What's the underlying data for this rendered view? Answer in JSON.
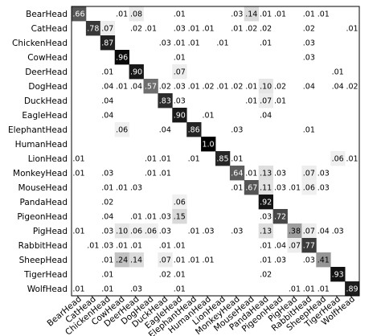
{
  "chart_data": {
    "type": "heatmap",
    "title": "",
    "xlabel": "",
    "ylabel": "",
    "labels": [
      "BearHead",
      "CatHead",
      "ChickenHead",
      "CowHead",
      "DeerHead",
      "DogHead",
      "DuckHead",
      "EagleHead",
      "ElephantHead",
      "HumanHead",
      "LionHead",
      "MonkeyHead",
      "MouseHead",
      "PandaHead",
      "PigeonHead",
      "PigHead",
      "RabbitHead",
      "SheepHead",
      "TigerHead",
      "WolfHead"
    ],
    "grid": false,
    "colormap": "gray-reversed",
    "range": [
      0,
      1
    ],
    "cells": [
      [
        [
          0,
          ".66"
        ],
        [
          3,
          ".01"
        ],
        [
          4,
          ".08"
        ],
        [
          7,
          ".01"
        ],
        [
          11,
          ".03"
        ],
        [
          12,
          ".14"
        ],
        [
          13,
          ".01"
        ],
        [
          14,
          ".01"
        ],
        [
          16,
          ".01"
        ],
        [
          17,
          ".01"
        ]
      ],
      [
        [
          1,
          ".78"
        ],
        [
          2,
          ".07"
        ],
        [
          4,
          ".02"
        ],
        [
          5,
          ".01"
        ],
        [
          7,
          ".03"
        ],
        [
          8,
          ".01"
        ],
        [
          9,
          ".01"
        ],
        [
          11,
          ".01"
        ],
        [
          12,
          ".02"
        ],
        [
          13,
          ".02"
        ],
        [
          16,
          ".02"
        ],
        [
          19,
          ".01"
        ]
      ],
      [
        [
          2,
          ".87"
        ],
        [
          6,
          ".03"
        ],
        [
          7,
          ".01"
        ],
        [
          8,
          ".01"
        ],
        [
          10,
          ".01"
        ],
        [
          13,
          ".01"
        ],
        [
          16,
          ".03"
        ]
      ],
      [
        [
          3,
          ".96"
        ],
        [
          7,
          ".01"
        ],
        [
          16,
          ".03"
        ]
      ],
      [
        [
          2,
          ".01"
        ],
        [
          4,
          ".90"
        ],
        [
          7,
          ".07"
        ],
        [
          18,
          ".01"
        ]
      ],
      [
        [
          2,
          ".04"
        ],
        [
          3,
          ".01"
        ],
        [
          4,
          ".04"
        ],
        [
          5,
          ".57"
        ],
        [
          6,
          ".02"
        ],
        [
          7,
          ".03"
        ],
        [
          8,
          ".01"
        ],
        [
          9,
          ".02"
        ],
        [
          10,
          ".01"
        ],
        [
          11,
          ".02"
        ],
        [
          12,
          ".01"
        ],
        [
          13,
          ".10"
        ],
        [
          14,
          ".02"
        ],
        [
          16,
          ".04"
        ],
        [
          18,
          ".04"
        ],
        [
          19,
          ".02"
        ]
      ],
      [
        [
          2,
          ".04"
        ],
        [
          6,
          ".83"
        ],
        [
          7,
          ".03"
        ],
        [
          12,
          ".01"
        ],
        [
          13,
          ".07"
        ],
        [
          14,
          ".01"
        ]
      ],
      [
        [
          2,
          ".04"
        ],
        [
          7,
          ".90"
        ],
        [
          9,
          ".01"
        ],
        [
          13,
          ".04"
        ]
      ],
      [
        [
          3,
          ".06"
        ],
        [
          6,
          ".04"
        ],
        [
          8,
          ".86"
        ],
        [
          11,
          ".03"
        ],
        [
          16,
          ".01"
        ]
      ],
      [
        [
          9,
          "1.0"
        ]
      ],
      [
        [
          0,
          ".01"
        ],
        [
          5,
          ".01"
        ],
        [
          6,
          ".01"
        ],
        [
          8,
          ".01"
        ],
        [
          10,
          ".85"
        ],
        [
          11,
          ".01"
        ],
        [
          18,
          ".06"
        ],
        [
          19,
          ".01"
        ]
      ],
      [
        [
          0,
          ".01"
        ],
        [
          2,
          ".03"
        ],
        [
          5,
          ".01"
        ],
        [
          6,
          ".01"
        ],
        [
          11,
          ".64"
        ],
        [
          12,
          ".01"
        ],
        [
          13,
          ".13"
        ],
        [
          14,
          ".03"
        ],
        [
          16,
          ".07"
        ],
        [
          17,
          ".03"
        ]
      ],
      [
        [
          2,
          ".01"
        ],
        [
          3,
          ".01"
        ],
        [
          4,
          ".03"
        ],
        [
          11,
          ".01"
        ],
        [
          12,
          ".67"
        ],
        [
          13,
          ".11"
        ],
        [
          14,
          ".03"
        ],
        [
          15,
          ".01"
        ],
        [
          16,
          ".06"
        ],
        [
          17,
          ".03"
        ]
      ],
      [
        [
          2,
          ".02"
        ],
        [
          7,
          ".06"
        ],
        [
          13,
          ".92"
        ]
      ],
      [
        [
          2,
          ".04"
        ],
        [
          4,
          ".01"
        ],
        [
          5,
          ".01"
        ],
        [
          6,
          ".03"
        ],
        [
          7,
          ".15"
        ],
        [
          13,
          ".03"
        ],
        [
          14,
          ".72"
        ]
      ],
      [
        [
          0,
          ".01"
        ],
        [
          2,
          ".03"
        ],
        [
          3,
          ".10"
        ],
        [
          4,
          ".06"
        ],
        [
          5,
          ".06"
        ],
        [
          6,
          ".03"
        ],
        [
          8,
          ".01"
        ],
        [
          9,
          ".03"
        ],
        [
          11,
          ".03"
        ],
        [
          13,
          ".13"
        ],
        [
          15,
          ".38"
        ],
        [
          16,
          ".07"
        ],
        [
          17,
          ".04"
        ],
        [
          18,
          ".03"
        ]
      ],
      [
        [
          1,
          ".01"
        ],
        [
          2,
          ".03"
        ],
        [
          3,
          ".01"
        ],
        [
          4,
          ".01"
        ],
        [
          6,
          ".01"
        ],
        [
          7,
          ".01"
        ],
        [
          13,
          ".01"
        ],
        [
          14,
          ".04"
        ],
        [
          15,
          ".07"
        ],
        [
          16,
          ".77"
        ]
      ],
      [
        [
          2,
          ".01"
        ],
        [
          3,
          ".24"
        ],
        [
          4,
          ".14"
        ],
        [
          6,
          ".07"
        ],
        [
          7,
          ".01"
        ],
        [
          8,
          ".01"
        ],
        [
          9,
          ".01"
        ],
        [
          13,
          ".01"
        ],
        [
          14,
          ".03"
        ],
        [
          16,
          ".03"
        ],
        [
          17,
          ".41"
        ]
      ],
      [
        [
          2,
          ".01"
        ],
        [
          6,
          ".02"
        ],
        [
          7,
          ".01"
        ],
        [
          13,
          ".02"
        ],
        [
          18,
          ".93"
        ]
      ],
      [
        [
          0,
          ".01"
        ],
        [
          2,
          ".01"
        ],
        [
          4,
          ".03"
        ],
        [
          7,
          ".01"
        ],
        [
          15,
          ".01"
        ],
        [
          16,
          ".01"
        ],
        [
          17,
          ".01"
        ],
        [
          19,
          ".89"
        ]
      ]
    ]
  }
}
